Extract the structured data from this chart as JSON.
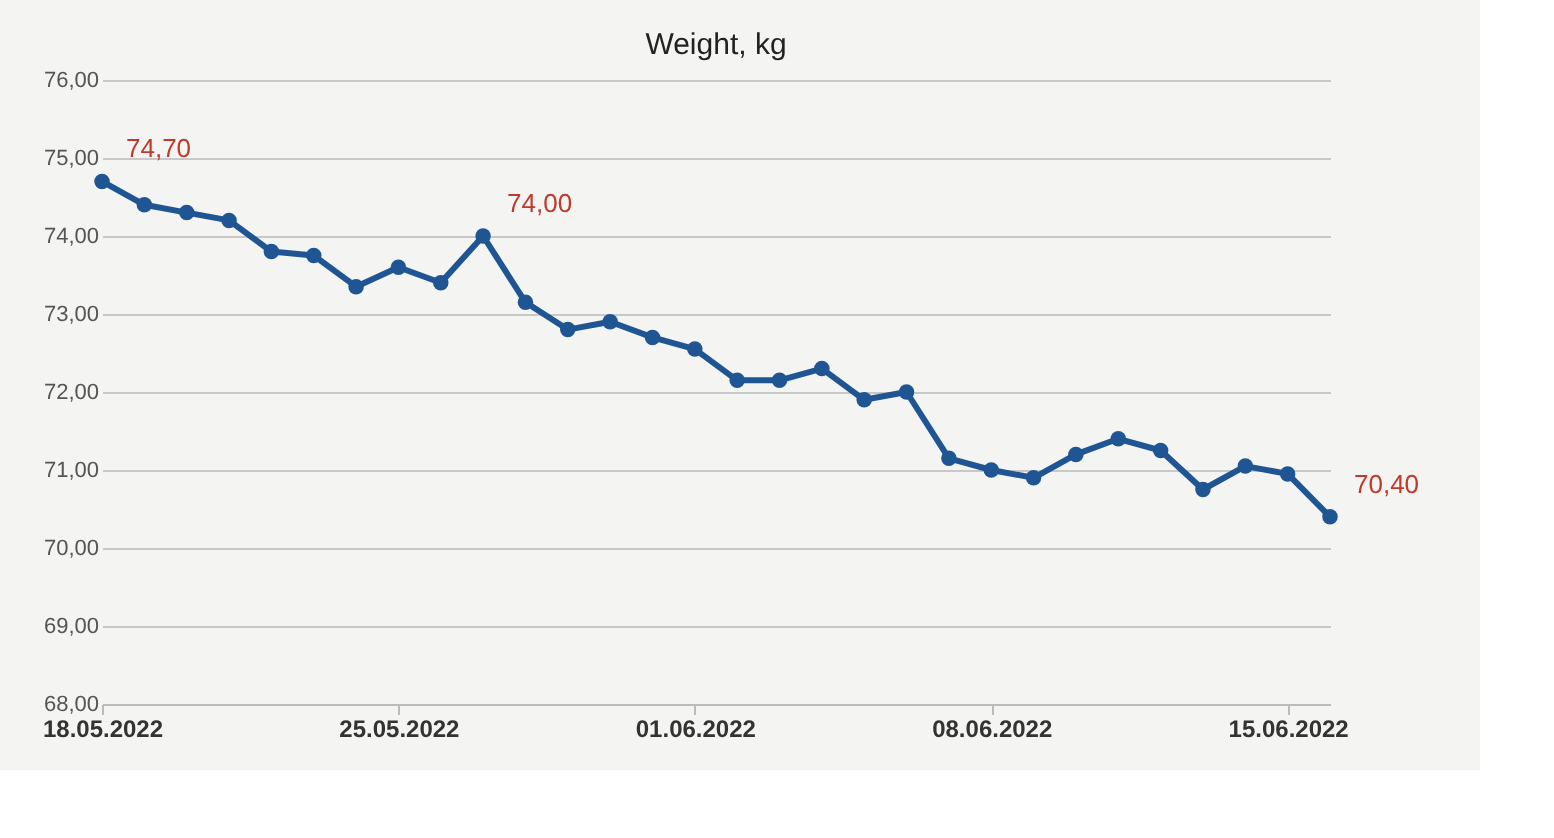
{
  "chart_data": {
    "type": "line",
    "title": "Weight, kg",
    "x": [
      "2022-05-18",
      "2022-05-19",
      "2022-05-20",
      "2022-05-21",
      "2022-05-22",
      "2022-05-23",
      "2022-05-24",
      "2022-05-25",
      "2022-05-26",
      "2022-05-27",
      "2022-05-28",
      "2022-05-29",
      "2022-05-30",
      "2022-05-31",
      "2022-06-01",
      "2022-06-02",
      "2022-06-03",
      "2022-06-04",
      "2022-06-05",
      "2022-06-06",
      "2022-06-07",
      "2022-06-08",
      "2022-06-09",
      "2022-06-10",
      "2022-06-11",
      "2022-06-12",
      "2022-06-13",
      "2022-06-14",
      "2022-06-15",
      "2022-06-16"
    ],
    "series": [
      {
        "color": "#1f5592",
        "values": [
          74.7,
          74.4,
          74.3,
          74.2,
          73.8,
          73.75,
          73.35,
          73.6,
          73.4,
          74.0,
          73.15,
          72.8,
          72.9,
          72.7,
          72.55,
          72.15,
          72.15,
          72.3,
          71.9,
          72.0,
          71.15,
          71.0,
          70.9,
          71.2,
          71.4,
          71.25,
          70.75,
          71.05,
          70.95,
          70.4
        ],
        "value_labels": [
          "74,70",
          null,
          null,
          null,
          null,
          null,
          null,
          null,
          null,
          "74,00",
          null,
          null,
          null,
          null,
          null,
          null,
          null,
          null,
          null,
          null,
          null,
          null,
          null,
          null,
          null,
          null,
          null,
          null,
          null,
          "70,40"
        ]
      }
    ],
    "xlim": [
      "2022-05-18",
      "2022-06-16"
    ],
    "xticks": [
      {
        "value": "2022-05-18",
        "label": "18.05.2022"
      },
      {
        "value": "2022-05-25",
        "label": "25.05.2022"
      },
      {
        "value": "2022-06-01",
        "label": "01.06.2022"
      },
      {
        "value": "2022-06-08",
        "label": "08.06.2022"
      },
      {
        "value": "2022-06-15",
        "label": "15.06.2022"
      }
    ],
    "ylim": [
      68,
      76
    ],
    "yticks": [
      {
        "value": 68,
        "label": "68,00"
      },
      {
        "value": 69,
        "label": "69,00"
      },
      {
        "value": 70,
        "label": "70,00"
      },
      {
        "value": 71,
        "label": "71,00"
      },
      {
        "value": 72,
        "label": "72,00"
      },
      {
        "value": 73,
        "label": "73,00"
      },
      {
        "value": 74,
        "label": "74,00"
      },
      {
        "value": 75,
        "label": "75,00"
      },
      {
        "value": 76,
        "label": "76,00"
      }
    ],
    "grid": "y",
    "marker": "circle",
    "line_style": "solid"
  }
}
